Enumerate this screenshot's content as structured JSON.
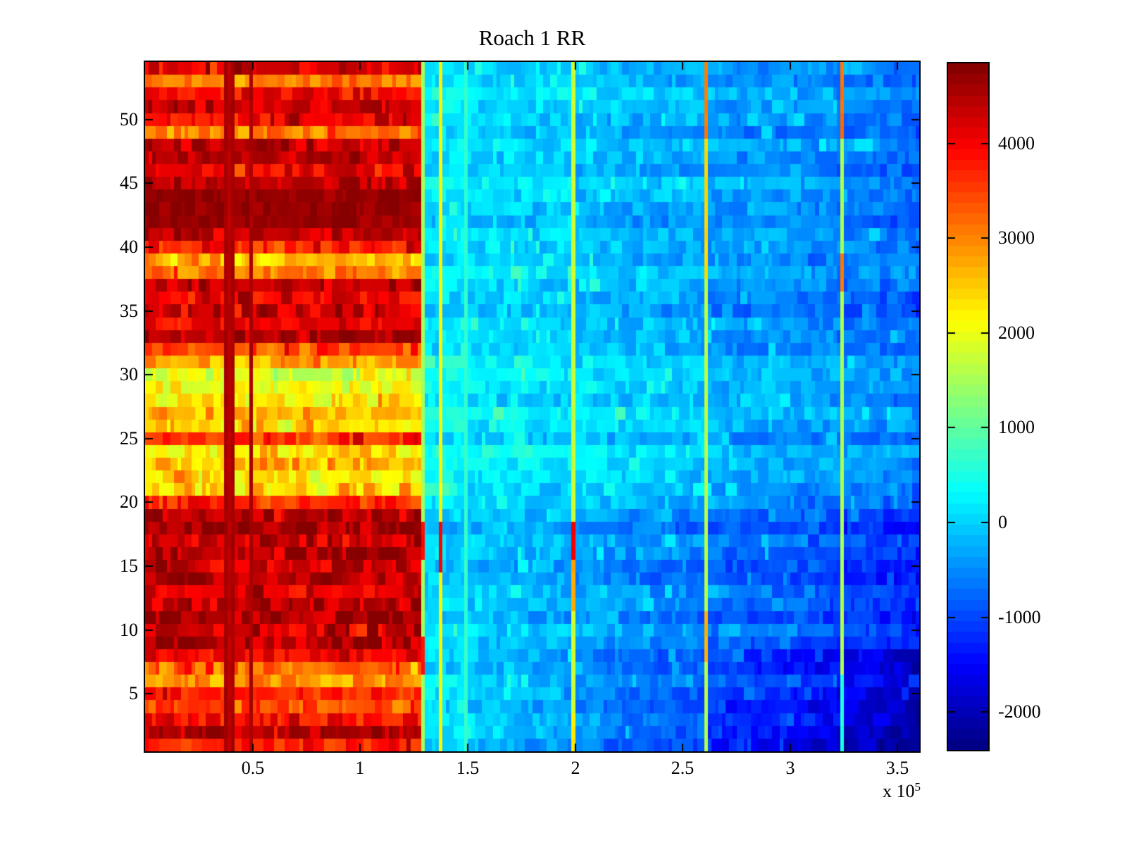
{
  "figure": {
    "title": "Roach 1 RR",
    "background_color": "#ffffff"
  },
  "chart_data": {
    "type": "heatmap",
    "title": "Roach 1 RR",
    "colormap": "jet",
    "x_axis": {
      "range": [
        0,
        360000
      ],
      "ticks": [
        50000,
        100000,
        150000,
        200000,
        250000,
        300000,
        350000
      ],
      "tick_labels": [
        "0.5",
        "1",
        "1.5",
        "2",
        "2.5",
        "3",
        "3.5"
      ],
      "exponent_label_base": "x 10",
      "exponent_label_exp": "5"
    },
    "y_axis": {
      "range": [
        0.5,
        54.5
      ],
      "ticks": [
        5,
        10,
        15,
        20,
        25,
        30,
        35,
        40,
        45,
        50
      ],
      "tick_labels": [
        "5",
        "10",
        "15",
        "20",
        "25",
        "30",
        "35",
        "40",
        "45",
        "50"
      ]
    },
    "colorbar": {
      "cmin": -2400,
      "cmax": 4844,
      "levels": 64,
      "ticks": [
        -2000,
        -1000,
        0,
        1000,
        2000,
        3000,
        4000
      ],
      "tick_labels": [
        "-2000",
        "-1000",
        "0",
        "1000",
        "2000",
        "3000",
        "4000"
      ]
    },
    "grid": {
      "n_rows": 54,
      "n_cols": 216,
      "hot_cold_boundary_col": 77
    },
    "rows_left_value": [
      3700,
      4500,
      3900,
      3400,
      3750,
      2850,
      3150,
      4050,
      4450,
      4250,
      4500,
      4400,
      4150,
      4450,
      4250,
      4450,
      4250,
      4550,
      4350,
      3700,
      2350,
      2300,
      2600,
      2250,
      3500,
      2300,
      2450,
      2250,
      2100,
      1850,
      2750,
      3300,
      4450,
      3950,
      4350,
      4050,
      4450,
      2950,
      2500,
      3800,
      4400,
      4700,
      4750,
      4700,
      4450,
      4050,
      4400,
      4350,
      3000,
      3900,
      4350,
      3900,
      3100,
      4150
    ],
    "rows_right_start": [
      100,
      100,
      100,
      120,
      120,
      150,
      150,
      120,
      0,
      0,
      0,
      0,
      0,
      0,
      -50,
      -50,
      -50,
      -50,
      0,
      100,
      330,
      330,
      300,
      330,
      200,
      330,
      330,
      330,
      350,
      350,
      220,
      200,
      150,
      130,
      130,
      130,
      130,
      180,
      200,
      150,
      130,
      130,
      130,
      130,
      130,
      150,
      130,
      150,
      200,
      180,
      150,
      180,
      200,
      150
    ],
    "rows_right_end": [
      -2300,
      -2250,
      -2200,
      -2000,
      -1950,
      -1850,
      -1850,
      -1900,
      -1400,
      -1350,
      -1350,
      -1300,
      -1250,
      -1300,
      -1300,
      -1300,
      -1250,
      -1300,
      -1200,
      -1000,
      -550,
      -550,
      -600,
      -550,
      -700,
      -550,
      -550,
      -550,
      -500,
      -500,
      -700,
      -750,
      -800,
      -850,
      -850,
      -850,
      -850,
      -750,
      -700,
      -800,
      -850,
      -800,
      -800,
      -800,
      -780,
      -760,
      -780,
      -760,
      -700,
      -720,
      -750,
      -720,
      -700,
      -750
    ],
    "dark_columns": [
      {
        "col": 22,
        "value": 4580
      },
      {
        "col": 23,
        "value": 4420
      },
      {
        "col": 24,
        "value": 4580
      },
      {
        "col": 29,
        "value": 4560
      }
    ],
    "artifact_columns": [
      {
        "col": 77,
        "default": 1500,
        "segments": [
          [
            16,
            18,
            3900
          ],
          [
            7,
            9,
            3800
          ]
        ]
      },
      {
        "col": 82,
        "default": 2150,
        "segments": [
          [
            15,
            18,
            3950
          ]
        ]
      },
      {
        "col": 89,
        "default": 650,
        "segments": []
      },
      {
        "col": 119,
        "default": 1750,
        "segments": [
          [
            16,
            18,
            4000
          ],
          [
            12,
            15,
            2750
          ],
          [
            1,
            3,
            2300
          ]
        ]
      },
      {
        "col": 156,
        "default": 1650,
        "segments": [
          [
            49,
            54,
            3050
          ],
          [
            38,
            48,
            2400
          ],
          [
            8,
            11,
            2650
          ]
        ]
      },
      {
        "col": 194,
        "default": 1550,
        "segments": [
          [
            49,
            54,
            3150
          ],
          [
            37,
            39,
            3100
          ],
          [
            1,
            6,
            550
          ]
        ]
      }
    ],
    "noise": {
      "seed": 42,
      "left_amp": 400,
      "left_amp_dark_band": 120,
      "dark_band_rows": [
        42,
        44
      ],
      "right_amp": 280,
      "column_amp": 130
    }
  }
}
